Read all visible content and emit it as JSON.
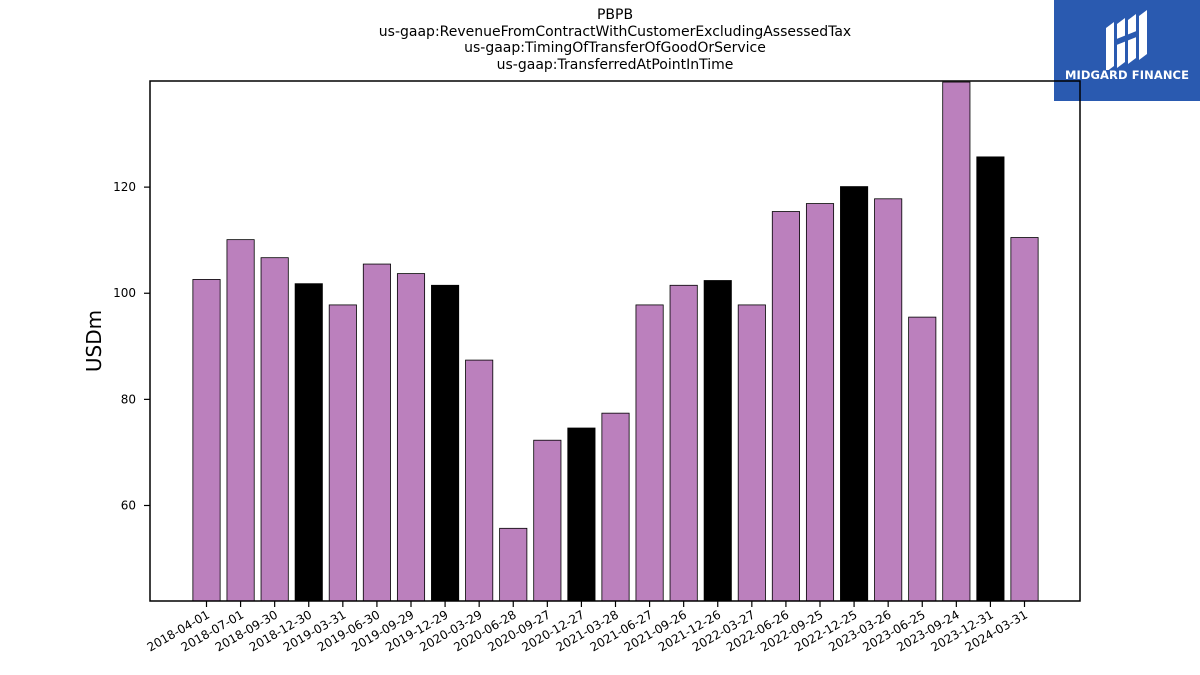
{
  "chart_data": {
    "type": "bar",
    "title_lines": [
      "PBPB",
      "us-gaap:RevenueFromContractWithCustomerExcludingAssessedTax",
      "us-gaap:TimingOfTransferOfGoodOrService",
      "us-gaap:TransferredAtPointInTime"
    ],
    "ylabel": "USDm",
    "xlabel": "",
    "ylim": [
      42,
      140
    ],
    "yticks": [
      60,
      80,
      100,
      120
    ],
    "categories": [
      "2018-04-01",
      "2018-07-01",
      "2018-09-30",
      "2018-12-30",
      "2019-03-31",
      "2019-06-30",
      "2019-09-29",
      "2019-12-29",
      "2020-03-29",
      "2020-06-28",
      "2020-09-27",
      "2020-12-27",
      "2021-03-28",
      "2021-06-27",
      "2021-09-26",
      "2021-12-26",
      "2022-03-27",
      "2022-06-26",
      "2022-09-25",
      "2022-12-25",
      "2023-03-26",
      "2023-06-25",
      "2023-09-24",
      "2023-12-31",
      "2024-03-31"
    ],
    "values": [
      102.6,
      110.1,
      106.7,
      101.8,
      97.8,
      105.5,
      103.7,
      101.5,
      87.4,
      55.7,
      72.3,
      74.6,
      77.4,
      97.8,
      101.5,
      102.4,
      97.8,
      115.4,
      116.9,
      120.1,
      117.8,
      95.5,
      139.8,
      125.7,
      110.5
    ],
    "bar_colors": [
      "#bb80bd",
      "#bb80bd",
      "#bb80bd",
      "#000000",
      "#bb80bd",
      "#bb80bd",
      "#bb80bd",
      "#000000",
      "#bb80bd",
      "#bb80bd",
      "#bb80bd",
      "#000000",
      "#bb80bd",
      "#bb80bd",
      "#bb80bd",
      "#000000",
      "#bb80bd",
      "#bb80bd",
      "#bb80bd",
      "#000000",
      "#bb80bd",
      "#bb80bd",
      "#bb80bd",
      "#000000",
      "#bb80bd"
    ],
    "grid": false,
    "legend": "none"
  },
  "logo": {
    "text": "MIDGARD FINANCE",
    "background": "#2a5ab0"
  }
}
